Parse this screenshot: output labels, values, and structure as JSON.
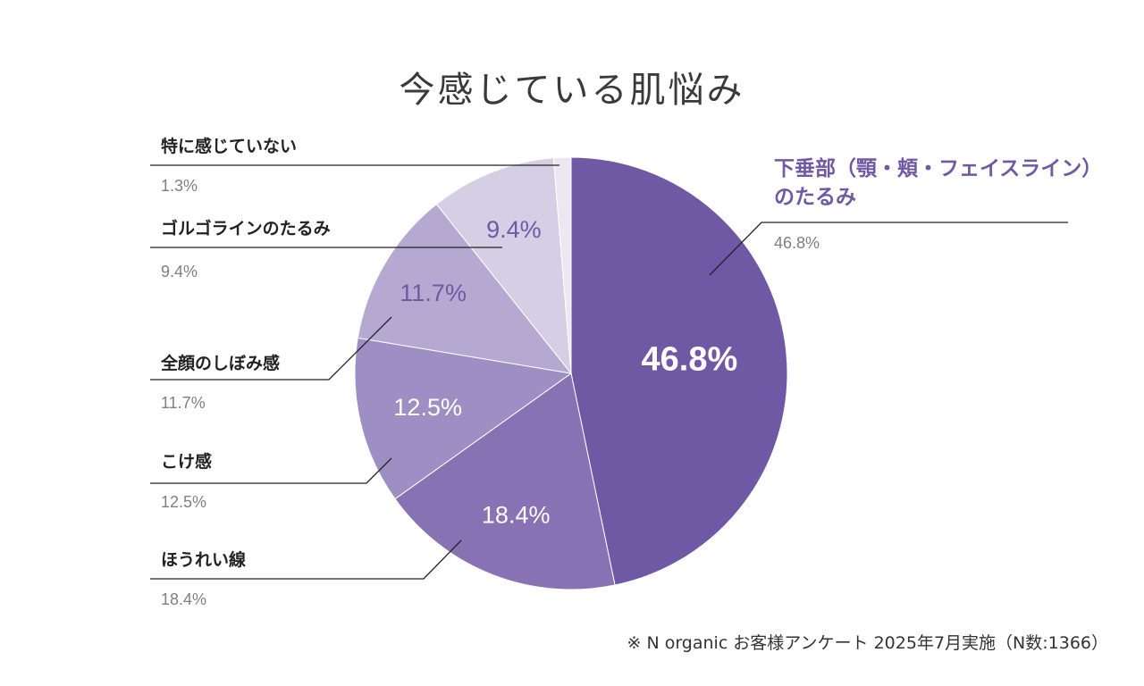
{
  "chart_data": {
    "type": "pie",
    "title": "今感じている肌悩み",
    "unit": "%",
    "start_angle_deg": 0,
    "direction": "clockwise",
    "slices": [
      {
        "label_lines": [
          "下垂部（顎・頬・フェイスライン）",
          "のたるみ"
        ],
        "value": 46.8,
        "value_label": "46.8%",
        "color": "#6f58a4",
        "text_color": "#ffffff",
        "label_color": "#6f58a4"
      },
      {
        "label_lines": [
          "ほうれい線"
        ],
        "value": 18.4,
        "value_label": "18.4%",
        "color": "#8872b4",
        "text_color": "#ffffff",
        "label_color": "#222222"
      },
      {
        "label_lines": [
          "こけ感"
        ],
        "value": 12.5,
        "value_label": "12.5%",
        "color": "#9d8fc4",
        "text_color": "#ffffff",
        "label_color": "#222222"
      },
      {
        "label_lines": [
          "全顔のしぼみ感"
        ],
        "value": 11.7,
        "value_label": "11.7%",
        "color": "#b5a9d2",
        "text_color": "#6f58a4",
        "label_color": "#222222"
      },
      {
        "label_lines": [
          "ゴルゴラインのたるみ"
        ],
        "value": 9.4,
        "value_label": "9.4%",
        "color": "#d5cfe6",
        "text_color": "#6f58a4",
        "label_color": "#222222"
      },
      {
        "label_lines": [
          "特に感じていない"
        ],
        "value": 1.3,
        "value_label": "1.3%",
        "color": "#ebe8f2",
        "text_color": "#6f58a4",
        "label_color": "#222222"
      }
    ],
    "legend_placement": "callouts"
  },
  "footnote": "※ N organic お客様アンケート 2025年7月実施（N数:1366）"
}
